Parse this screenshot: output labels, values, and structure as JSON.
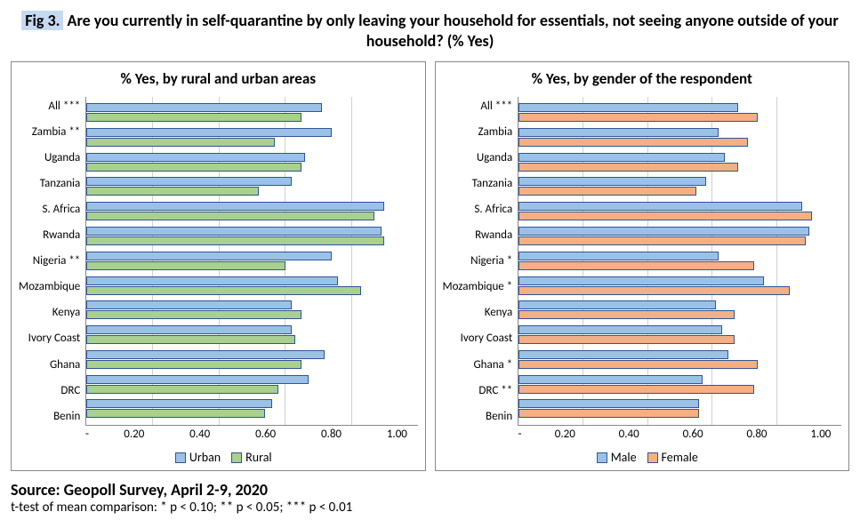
{
  "title_label": "Fig 3.",
  "title_rest": " Are you currently in self-quarantine by only leaving your household for essentials, not seeing anyone outside of your household? (% Yes)",
  "source": "Source: Geopoll Survey, April 2-9, 2020",
  "note": "t-test of mean comparison: * p < 0.10; ** p < 0.05; *** p < 0.01",
  "x_ticks": [
    "-",
    "0.20",
    "0.40",
    "0.60",
    "0.80",
    "1.00"
  ],
  "x_max": 1.0,
  "colors": {
    "urban": "#9bc2e6",
    "rural": "#a9d08e",
    "male": "#9bc2e6",
    "female": "#f4b084",
    "border": "#2f5597",
    "grid": "#d0d0d0"
  },
  "left": {
    "title": "% Yes, by rural and urban areas",
    "series": [
      {
        "name": "Urban",
        "color": "#9bc2e6"
      },
      {
        "name": "Rural",
        "color": "#a9d08e"
      }
    ],
    "rows": [
      {
        "label": "All ***",
        "a": 0.71,
        "b": 0.65
      },
      {
        "label": "Zambia **",
        "a": 0.74,
        "b": 0.57
      },
      {
        "label": "Uganda",
        "a": 0.66,
        "b": 0.65
      },
      {
        "label": "Tanzania",
        "a": 0.62,
        "b": 0.52
      },
      {
        "label": "S. Africa",
        "a": 0.9,
        "b": 0.87
      },
      {
        "label": "Rwanda",
        "a": 0.89,
        "b": 0.9
      },
      {
        "label": "Nigeria **",
        "a": 0.74,
        "b": 0.6
      },
      {
        "label": "Mozambique",
        "a": 0.76,
        "b": 0.83
      },
      {
        "label": "Kenya",
        "a": 0.62,
        "b": 0.65
      },
      {
        "label": "Ivory Coast",
        "a": 0.62,
        "b": 0.63
      },
      {
        "label": "Ghana",
        "a": 0.72,
        "b": 0.65
      },
      {
        "label": "DRC",
        "a": 0.67,
        "b": 0.58
      },
      {
        "label": "Benin",
        "a": 0.56,
        "b": 0.54
      }
    ]
  },
  "right": {
    "title": "% Yes, by gender of the respondent",
    "series": [
      {
        "name": "Male",
        "color": "#9bc2e6"
      },
      {
        "name": "Female",
        "color": "#f4b084"
      }
    ],
    "rows": [
      {
        "label": "All ***",
        "a": 0.68,
        "b": 0.74
      },
      {
        "label": "Zambia",
        "a": 0.62,
        "b": 0.71
      },
      {
        "label": "Uganda",
        "a": 0.64,
        "b": 0.68
      },
      {
        "label": "Tanzania",
        "a": 0.58,
        "b": 0.55
      },
      {
        "label": "S. Africa",
        "a": 0.88,
        "b": 0.91
      },
      {
        "label": "Rwanda",
        "a": 0.9,
        "b": 0.89
      },
      {
        "label": "Nigeria *",
        "a": 0.62,
        "b": 0.73
      },
      {
        "label": "Mozambique *",
        "a": 0.76,
        "b": 0.84
      },
      {
        "label": "Kenya",
        "a": 0.61,
        "b": 0.67
      },
      {
        "label": "Ivory Coast",
        "a": 0.63,
        "b": 0.67
      },
      {
        "label": "Ghana *",
        "a": 0.65,
        "b": 0.74
      },
      {
        "label": "DRC **",
        "a": 0.57,
        "b": 0.73
      },
      {
        "label": "Benin",
        "a": 0.56,
        "b": 0.56
      }
    ]
  }
}
